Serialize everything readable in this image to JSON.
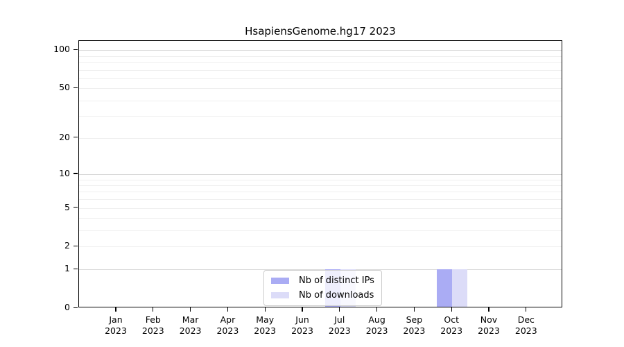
{
  "chart_data": {
    "type": "bar",
    "title": "HsapiensGenome.hg17 2023",
    "categories": [
      "Jan",
      "Feb",
      "Mar",
      "Apr",
      "May",
      "Jun",
      "Jul",
      "Aug",
      "Sep",
      "Oct",
      "Nov",
      "Dec"
    ],
    "category_year": "2023",
    "series": [
      {
        "name": "Nb of distinct IPs",
        "color": "#aaacf4",
        "values": [
          0,
          0,
          0,
          0,
          0,
          0,
          1,
          0,
          0,
          1,
          0,
          0
        ]
      },
      {
        "name": "Nb of downloads",
        "color": "#dcdcf8",
        "values": [
          0,
          0,
          0,
          0,
          0,
          0,
          1,
          0,
          0,
          1,
          0,
          0
        ]
      }
    ],
    "xlabel": "",
    "ylabel": "",
    "y_scale": "log1p",
    "ylim": [
      0,
      118
    ],
    "y_tick_values": [
      0,
      1,
      2,
      5,
      10,
      20,
      50,
      100
    ],
    "y_major_gridlines": [
      1,
      10,
      100
    ],
    "y_minor_gridlines": [
      2,
      3,
      4,
      5,
      6,
      7,
      8,
      9,
      20,
      30,
      40,
      50,
      60,
      70,
      80,
      90
    ],
    "grid": "on",
    "legend_position": "inside-bottom-center",
    "colors": {
      "major_grid": "#d8d8d8",
      "minor_grid": "#efefef",
      "axis": "#000000",
      "text": "#000000",
      "background": "#ffffff"
    }
  }
}
